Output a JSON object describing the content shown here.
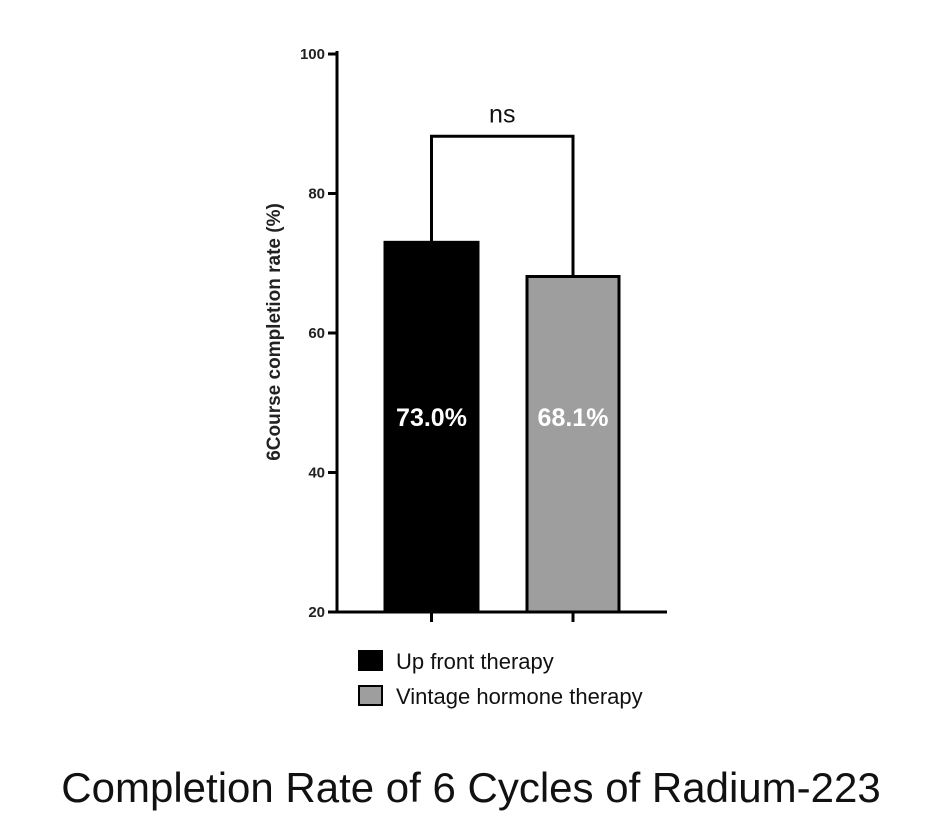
{
  "chart_data": {
    "type": "bar",
    "title": "Completion Rate of  6 Cycles of Radium-223",
    "ylabel": "6Course completion rate (%)",
    "xlabel": "",
    "ylim": [
      20,
      100
    ],
    "yticks": [
      20,
      40,
      60,
      80,
      100
    ],
    "grid": false,
    "legend_position": "bottom",
    "categories": [
      "Up front therapy",
      "Vintage hormone therapy"
    ],
    "values": [
      73.0,
      68.1
    ],
    "data_labels": [
      "73.0%",
      "68.1%"
    ],
    "colors": [
      "#000000",
      "#9e9e9e"
    ],
    "annotation": {
      "text": "ns",
      "between": [
        0,
        1
      ],
      "y": 88.2
    }
  }
}
